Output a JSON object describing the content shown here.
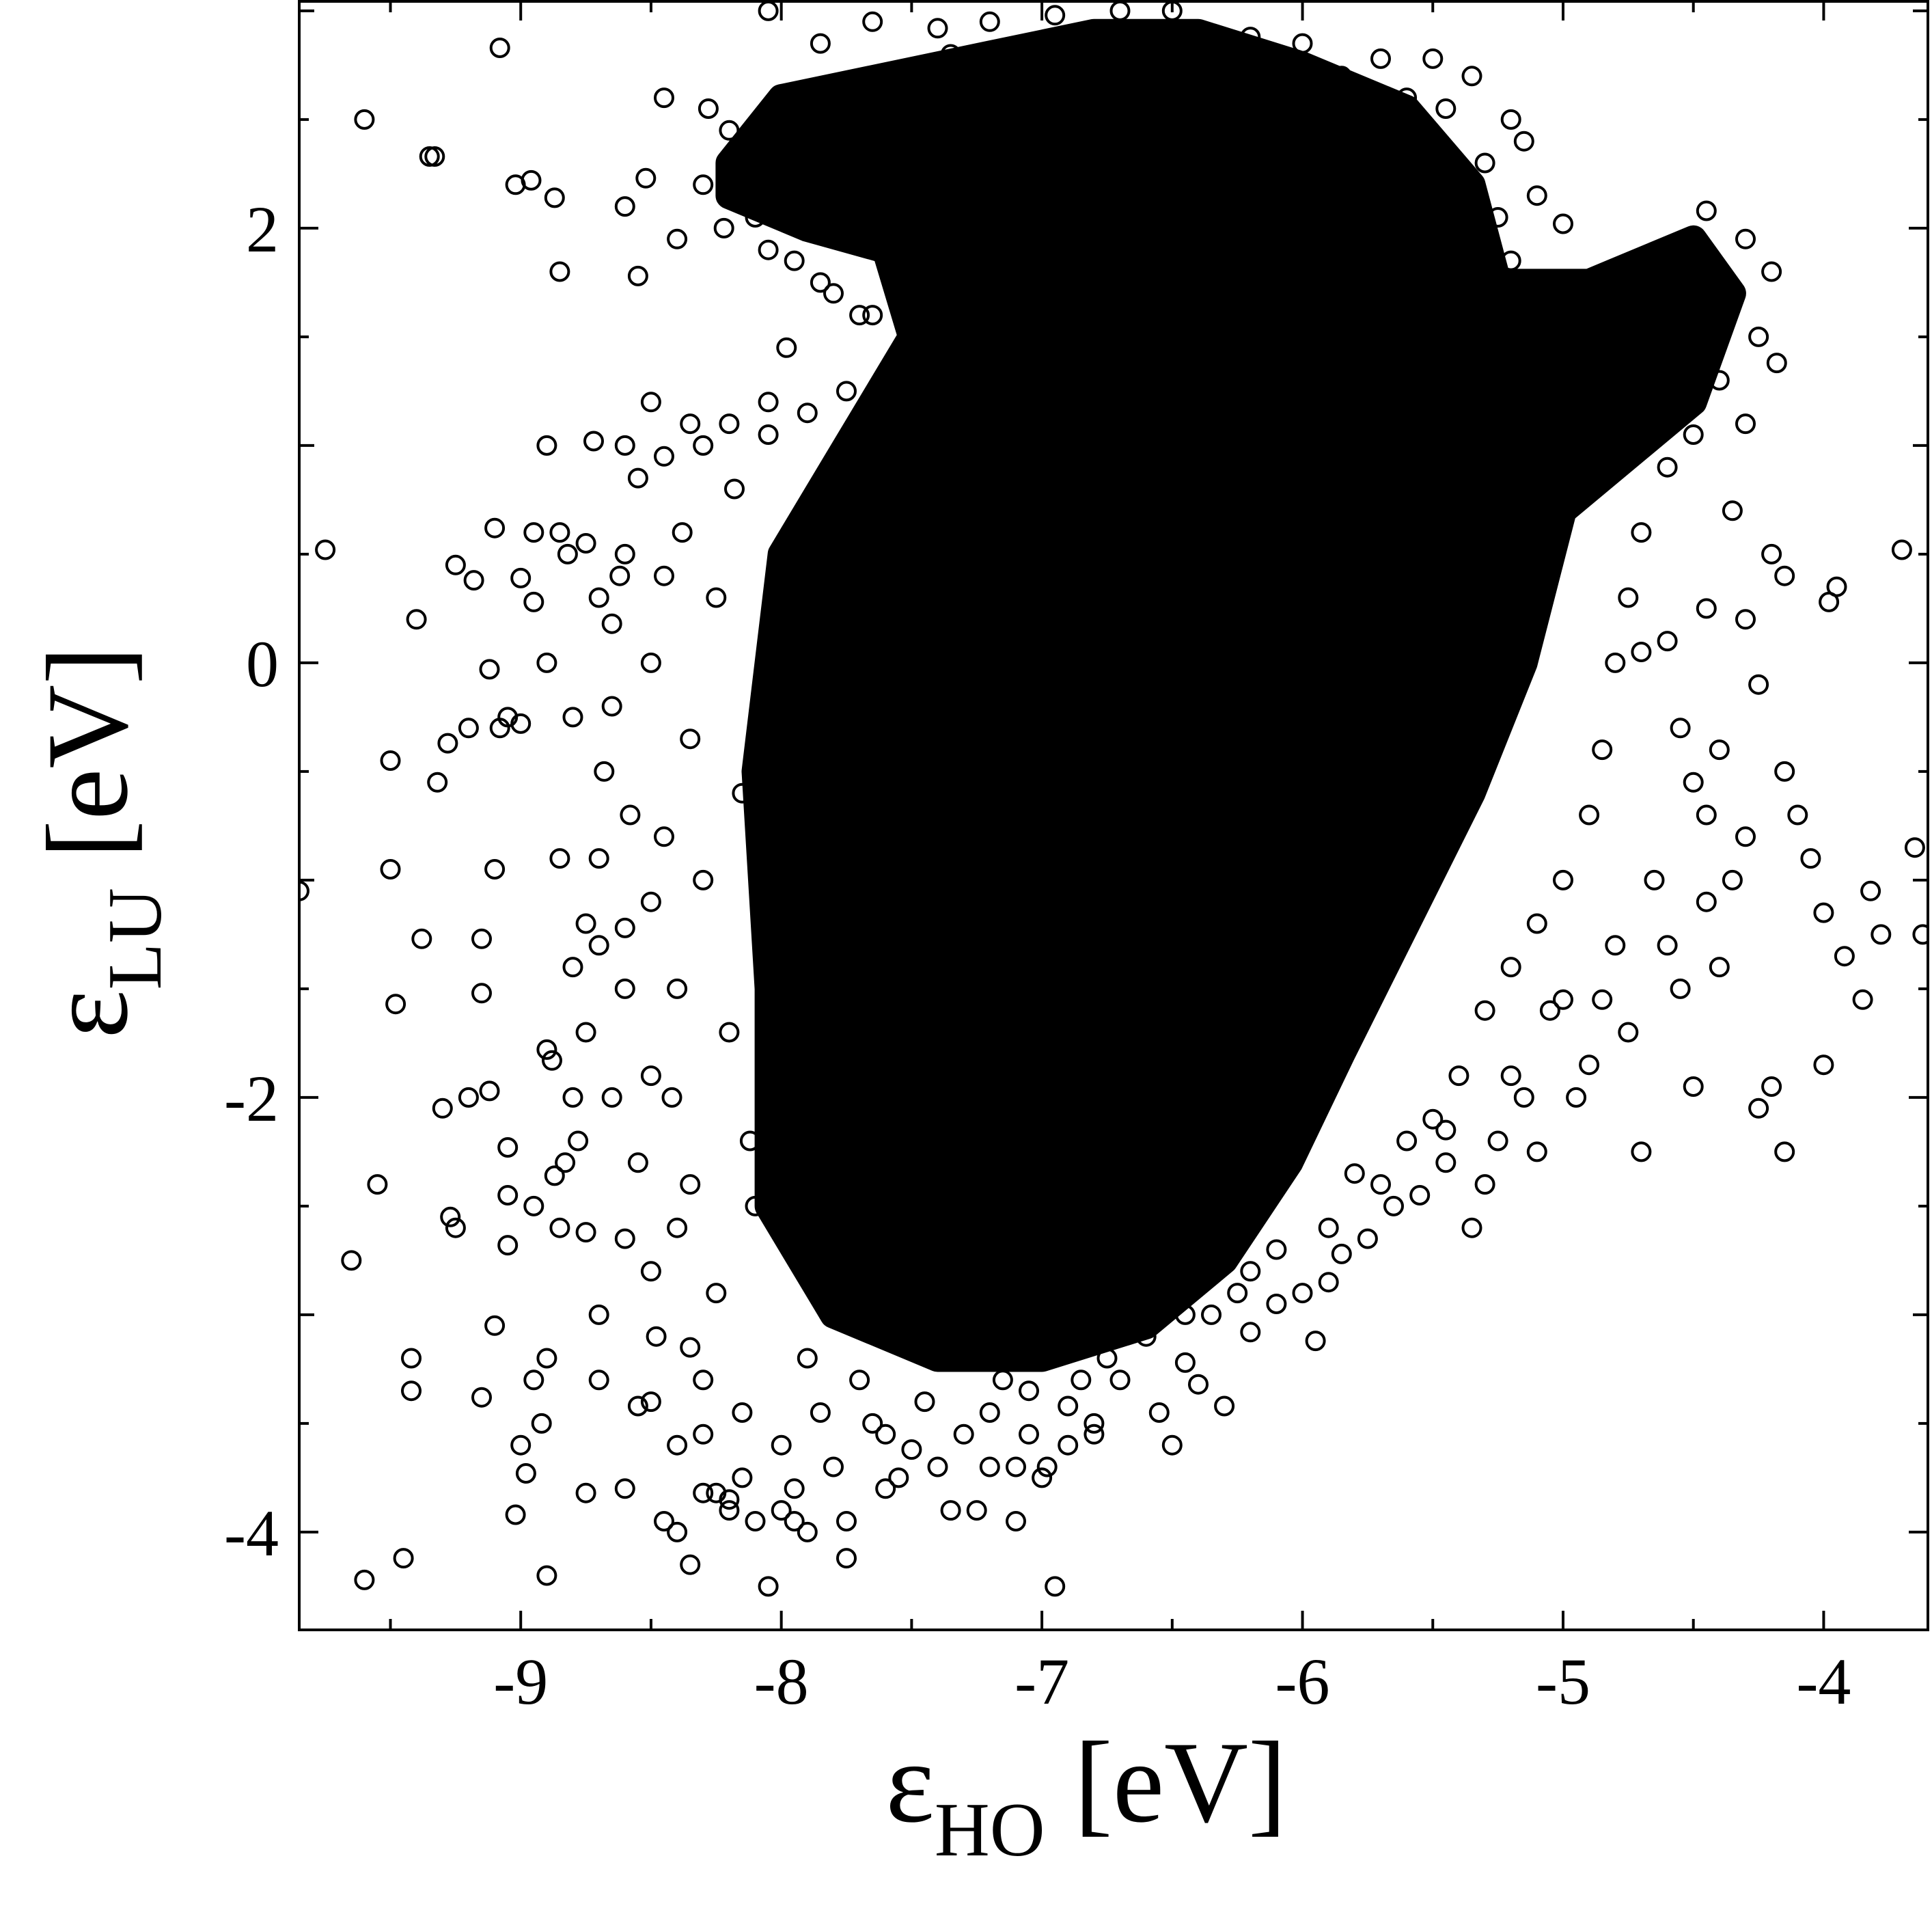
{
  "chart_data": {
    "type": "scatter",
    "title": "",
    "xlabel": {
      "symbol": "ε",
      "subscript": "HO",
      "unit": "[eV]"
    },
    "ylabel": {
      "symbol": "ε",
      "subscript": "LU",
      "unit": "[eV]"
    },
    "xlim": [
      -9.85,
      -3.6
    ],
    "ylim": [
      -4.45,
      3.05
    ],
    "xticks": [
      {
        "value": -9,
        "label": "-9"
      },
      {
        "value": -8,
        "label": "-8"
      },
      {
        "value": -7,
        "label": "-7"
      },
      {
        "value": -6,
        "label": "-6"
      },
      {
        "value": -5,
        "label": "-5"
      },
      {
        "value": -4,
        "label": "-4"
      }
    ],
    "yticks": [
      {
        "value": -4,
        "label": "-4"
      },
      {
        "value": -2,
        "label": "-2"
      },
      {
        "value": 0,
        "label": "0"
      },
      {
        "value": 2,
        "label": "2"
      }
    ],
    "grid": false,
    "legend": "none",
    "marker": "open-circle",
    "marker_color": "#000000",
    "dense_region_outline": [
      [
        -8.2,
        2.3
      ],
      [
        -8.0,
        2.6
      ],
      [
        -7.6,
        2.7
      ],
      [
        -7.2,
        2.8
      ],
      [
        -6.8,
        2.9
      ],
      [
        -6.4,
        2.9
      ],
      [
        -6.0,
        2.75
      ],
      [
        -5.6,
        2.55
      ],
      [
        -5.35,
        2.2
      ],
      [
        -5.25,
        1.75
      ],
      [
        -4.9,
        1.75
      ],
      [
        -4.5,
        1.95
      ],
      [
        -4.35,
        1.7
      ],
      [
        -4.5,
        1.2
      ],
      [
        -5.0,
        0.7
      ],
      [
        -5.15,
        0.0
      ],
      [
        -5.35,
        -0.6
      ],
      [
        -5.6,
        -1.2
      ],
      [
        -5.85,
        -1.8
      ],
      [
        -6.05,
        -2.3
      ],
      [
        -6.3,
        -2.75
      ],
      [
        -6.6,
        -3.05
      ],
      [
        -7.0,
        -3.2
      ],
      [
        -7.4,
        -3.2
      ],
      [
        -7.8,
        -3.0
      ],
      [
        -8.05,
        -2.5
      ],
      [
        -8.05,
        -1.5
      ],
      [
        -8.1,
        -0.5
      ],
      [
        -8.0,
        0.5
      ],
      [
        -7.7,
        1.1
      ],
      [
        -7.5,
        1.5
      ],
      [
        -7.6,
        1.9
      ],
      [
        -7.9,
        2.0
      ],
      [
        -8.2,
        2.15
      ]
    ],
    "points": [
      [
        -9.85,
        -1.05
      ],
      [
        -9.75,
        0.52
      ],
      [
        -9.65,
        -2.75
      ],
      [
        -9.6,
        2.5
      ],
      [
        -9.6,
        -4.22
      ],
      [
        -9.55,
        -2.4
      ],
      [
        -9.5,
        -0.45
      ],
      [
        -9.5,
        -0.95
      ],
      [
        -9.48,
        -1.57
      ],
      [
        -9.45,
        -4.12
      ],
      [
        -9.42,
        -3.2
      ],
      [
        -9.42,
        -3.35
      ],
      [
        -9.4,
        0.2
      ],
      [
        -9.38,
        -1.27
      ],
      [
        -9.35,
        2.33
      ],
      [
        -9.33,
        2.33
      ],
      [
        -9.32,
        -0.55
      ],
      [
        -9.3,
        -2.05
      ],
      [
        -9.28,
        -0.37
      ],
      [
        -9.27,
        -2.55
      ],
      [
        -9.25,
        -2.6
      ],
      [
        -9.2,
        -2.0
      ],
      [
        -9.18,
        0.38
      ],
      [
        -9.15,
        -1.27
      ],
      [
        -9.15,
        -1.52
      ],
      [
        -9.15,
        -3.38
      ],
      [
        -9.12,
        -0.03
      ],
      [
        -9.12,
        -1.97
      ],
      [
        -9.1,
        -3.05
      ],
      [
        -9.1,
        -0.95
      ],
      [
        -9.08,
        2.83
      ],
      [
        -9.08,
        -0.3
      ],
      [
        -9.05,
        -2.23
      ],
      [
        -9.05,
        -2.45
      ],
      [
        -9.05,
        -2.68
      ],
      [
        -9.02,
        -3.92
      ],
      [
        -9.02,
        2.2
      ],
      [
        -9.0,
        0.39
      ],
      [
        -8.98,
        -3.73
      ],
      [
        -8.96,
        2.22
      ],
      [
        -8.95,
        0.6
      ],
      [
        -8.95,
        -2.5
      ],
      [
        -8.92,
        -3.5
      ],
      [
        -8.9,
        0.0
      ],
      [
        -8.9,
        -1.78
      ],
      [
        -8.9,
        -4.2
      ],
      [
        -8.88,
        -1.83
      ],
      [
        -8.87,
        2.14
      ],
      [
        -8.87,
        -2.36
      ],
      [
        -8.85,
        0.6
      ],
      [
        -8.83,
        -2.3
      ],
      [
        -8.82,
        0.5
      ],
      [
        -8.8,
        -0.25
      ],
      [
        -8.78,
        -2.2
      ],
      [
        -8.75,
        -3.82
      ],
      [
        -8.75,
        -2.62
      ],
      [
        -8.72,
        1.02
      ],
      [
        -8.7,
        0.3
      ],
      [
        -8.7,
        -1.3
      ],
      [
        -8.7,
        -3.0
      ],
      [
        -8.68,
        -0.5
      ],
      [
        -8.65,
        0.18
      ],
      [
        -8.62,
        0.4
      ],
      [
        -8.6,
        2.1
      ],
      [
        -8.6,
        -1.22
      ],
      [
        -8.6,
        -2.65
      ],
      [
        -8.58,
        -0.7
      ],
      [
        -8.55,
        1.78
      ],
      [
        -8.55,
        -3.42
      ],
      [
        -8.52,
        2.23
      ],
      [
        -8.5,
        0.0
      ],
      [
        -8.5,
        -1.1
      ],
      [
        -8.5,
        -1.9
      ],
      [
        -8.48,
        -3.1
      ],
      [
        -8.45,
        2.6
      ],
      [
        -8.45,
        0.4
      ],
      [
        -8.42,
        -2.0
      ],
      [
        -8.4,
        -1.5
      ],
      [
        -8.4,
        -3.6
      ],
      [
        -8.38,
        0.6
      ],
      [
        -8.35,
        -0.35
      ],
      [
        -8.35,
        -2.4
      ],
      [
        -8.3,
        1.0
      ],
      [
        -8.3,
        -1.0
      ],
      [
        -8.3,
        -3.3
      ],
      [
        -8.28,
        2.55
      ],
      [
        -8.25,
        0.3
      ],
      [
        -8.25,
        -2.9
      ],
      [
        -8.22,
        2.0
      ],
      [
        -8.2,
        -1.7
      ],
      [
        -8.2,
        -3.9
      ],
      [
        -8.18,
        0.8
      ],
      [
        -8.15,
        -0.6
      ],
      [
        -8.12,
        -2.2
      ],
      [
        -8.1,
        2.3
      ],
      [
        -8.1,
        -3.95
      ],
      [
        -8.05,
        -4.25
      ],
      [
        -8.05,
        1.2
      ],
      [
        -8.0,
        -3.6
      ],
      [
        -7.98,
        1.45
      ],
      [
        -7.95,
        -3.8
      ],
      [
        -7.9,
        -3.2
      ],
      [
        -7.85,
        1.75
      ],
      [
        -7.8,
        -3.7
      ],
      [
        -7.75,
        -4.12
      ],
      [
        -7.7,
        1.6
      ],
      [
        -7.65,
        -3.5
      ],
      [
        -7.6,
        -3.8
      ],
      [
        -7.55,
        1.3
      ],
      [
        -7.5,
        -3.62
      ],
      [
        -7.45,
        -3.4
      ],
      [
        -7.4,
        -3.7
      ],
      [
        -7.35,
        1.55
      ],
      [
        -7.3,
        -3.55
      ],
      [
        -7.25,
        -3.9
      ],
      [
        -7.2,
        -3.45
      ],
      [
        -7.15,
        -3.3
      ],
      [
        -7.1,
        -3.7
      ],
      [
        -7.05,
        -3.55
      ],
      [
        -7.0,
        -3.75
      ],
      [
        -6.95,
        -4.25
      ],
      [
        -6.9,
        -3.42
      ],
      [
        -6.85,
        -3.3
      ],
      [
        -6.8,
        -3.5
      ],
      [
        -6.75,
        -3.2
      ],
      [
        -6.7,
        -3.3
      ],
      [
        -6.6,
        -3.1
      ],
      [
        -6.5,
        -3.6
      ],
      [
        -6.45,
        -3.22
      ],
      [
        -6.4,
        -3.32
      ],
      [
        -6.35,
        -3.0
      ],
      [
        -6.3,
        -3.42
      ],
      [
        -6.25,
        -2.9
      ],
      [
        -6.2,
        -2.8
      ],
      [
        -6.1,
        -2.7
      ],
      [
        -6.0,
        -2.9
      ],
      [
        -5.95,
        -3.12
      ],
      [
        -5.9,
        -2.6
      ],
      [
        -5.85,
        -2.72
      ],
      [
        -5.8,
        -2.35
      ],
      [
        -5.7,
        -2.4
      ],
      [
        -5.6,
        -2.2
      ],
      [
        -5.5,
        -2.1
      ],
      [
        -5.45,
        -2.3
      ],
      [
        -5.4,
        -1.9
      ],
      [
        -5.35,
        -2.6
      ],
      [
        -5.3,
        -2.4
      ],
      [
        -5.25,
        -2.2
      ],
      [
        -5.2,
        -1.9
      ],
      [
        -5.15,
        -2.0
      ],
      [
        -5.1,
        -2.25
      ],
      [
        -5.05,
        -1.6
      ],
      [
        -5.0,
        -1.55
      ],
      [
        -4.95,
        -2.0
      ],
      [
        -4.9,
        -1.85
      ],
      [
        -4.85,
        -1.55
      ],
      [
        -4.8,
        -1.3
      ],
      [
        -4.75,
        -1.7
      ],
      [
        -4.7,
        -2.25
      ],
      [
        -4.65,
        -1.0
      ],
      [
        -4.6,
        -1.3
      ],
      [
        -4.55,
        -1.5
      ],
      [
        -4.5,
        -1.95
      ],
      [
        -4.45,
        -0.7
      ],
      [
        -4.45,
        -1.1
      ],
      [
        -4.4,
        -1.4
      ],
      [
        -4.35,
        -1.0
      ],
      [
        -4.3,
        -0.8
      ],
      [
        -4.25,
        -2.05
      ],
      [
        -4.2,
        -1.95
      ],
      [
        -4.15,
        -0.5
      ],
      [
        -4.15,
        -2.25
      ],
      [
        -4.1,
        -0.7
      ],
      [
        -4.05,
        -0.9
      ],
      [
        -4.0,
        -1.15
      ],
      [
        -4.0,
        -1.85
      ],
      [
        -3.98,
        0.28
      ],
      [
        -3.95,
        0.35
      ],
      [
        -3.92,
        -1.35
      ],
      [
        -3.85,
        -1.55
      ],
      [
        -3.82,
        -1.05
      ],
      [
        -3.78,
        -1.25
      ],
      [
        -3.7,
        0.52
      ],
      [
        -3.65,
        -0.85
      ],
      [
        -3.62,
        -1.25
      ],
      [
        -4.7,
        0.05
      ],
      [
        -4.6,
        0.1
      ],
      [
        -4.55,
        -0.3
      ],
      [
        -4.5,
        -0.55
      ],
      [
        -4.45,
        0.25
      ],
      [
        -4.4,
        -0.4
      ],
      [
        -4.35,
        0.7
      ],
      [
        -4.3,
        0.2
      ],
      [
        -4.25,
        -0.1
      ],
      [
        -4.2,
        0.5
      ],
      [
        -4.15,
        0.4
      ],
      [
        -4.3,
        1.1
      ],
      [
        -4.25,
        1.5
      ],
      [
        -4.2,
        1.8
      ],
      [
        -4.18,
        1.38
      ],
      [
        -4.3,
        1.95
      ],
      [
        -4.45,
        2.08
      ],
      [
        -5.0,
        2.02
      ],
      [
        -5.1,
        2.15
      ],
      [
        -5.15,
        2.4
      ],
      [
        -5.2,
        2.5
      ],
      [
        -5.35,
        2.7
      ],
      [
        -5.5,
        2.78
      ],
      [
        -5.7,
        2.78
      ],
      [
        -6.0,
        2.85
      ],
      [
        -6.2,
        2.88
      ],
      [
        -6.5,
        3.0
      ],
      [
        -6.7,
        3.0
      ],
      [
        -6.95,
        2.98
      ],
      [
        -7.2,
        2.95
      ],
      [
        -7.4,
        2.92
      ],
      [
        -7.65,
        2.95
      ],
      [
        -7.85,
        2.85
      ],
      [
        -8.05,
        3.0
      ],
      [
        -8.2,
        2.45
      ],
      [
        -8.3,
        2.2
      ],
      [
        -8.4,
        1.95
      ],
      [
        -8.5,
        1.2
      ],
      [
        -8.6,
        1.0
      ],
      [
        -8.75,
        0.55
      ],
      [
        -8.85,
        1.8
      ],
      [
        -8.9,
        1.0
      ],
      [
        -8.95,
        0.28
      ],
      [
        -9.0,
        -0.28
      ],
      [
        -9.05,
        -0.25
      ],
      [
        -9.1,
        0.62
      ],
      [
        -9.2,
        -0.3
      ],
      [
        -9.25,
        0.45
      ],
      [
        -8.85,
        -0.9
      ],
      [
        -8.8,
        -1.4
      ],
      [
        -8.75,
        -1.7
      ],
      [
        -8.65,
        -2.0
      ],
      [
        -8.6,
        -1.5
      ],
      [
        -8.55,
        -2.3
      ],
      [
        -8.5,
        -2.8
      ],
      [
        -8.45,
        -0.8
      ],
      [
        -8.4,
        -2.6
      ],
      [
        -8.35,
        -3.15
      ],
      [
        -8.3,
        -3.55
      ],
      [
        -8.25,
        -3.82
      ],
      [
        -8.15,
        -3.45
      ],
      [
        -8.1,
        -2.5
      ],
      [
        -7.95,
        -3.95
      ],
      [
        -7.9,
        -4.0
      ],
      [
        -7.85,
        -3.45
      ],
      [
        -7.75,
        -3.95
      ],
      [
        -7.7,
        -3.3
      ],
      [
        -7.6,
        -3.55
      ],
      [
        -7.55,
        -3.75
      ],
      [
        -7.35,
        -3.9
      ],
      [
        -7.2,
        -3.7
      ],
      [
        -7.1,
        -3.95
      ],
      [
        -7.05,
        -3.35
      ],
      [
        -6.98,
        -3.7
      ],
      [
        -6.9,
        -3.6
      ],
      [
        -6.8,
        -3.55
      ],
      [
        -6.55,
        -3.45
      ],
      [
        -6.45,
        -3.0
      ],
      [
        -6.2,
        -3.08
      ],
      [
        -6.1,
        -2.95
      ],
      [
        -5.9,
        -2.85
      ],
      [
        -5.75,
        -2.65
      ],
      [
        -5.65,
        -2.5
      ],
      [
        -5.55,
        -2.45
      ],
      [
        -5.45,
        -2.15
      ],
      [
        -5.3,
        -1.6
      ],
      [
        -5.2,
        -1.4
      ],
      [
        -5.1,
        -1.2
      ],
      [
        -5.0,
        -1.0
      ],
      [
        -4.9,
        -0.7
      ],
      [
        -4.85,
        -0.4
      ],
      [
        -4.8,
        0.0
      ],
      [
        -4.75,
        0.3
      ],
      [
        -4.7,
        0.6
      ],
      [
        -4.6,
        0.9
      ],
      [
        -4.5,
        1.05
      ],
      [
        -4.4,
        1.3
      ],
      [
        -4.7,
        1.65
      ],
      [
        -4.8,
        1.5
      ],
      [
        -5.05,
        1.6
      ],
      [
        -5.2,
        1.85
      ],
      [
        -5.25,
        2.05
      ],
      [
        -5.3,
        2.3
      ],
      [
        -5.45,
        2.55
      ],
      [
        -5.6,
        2.6
      ],
      [
        -5.85,
        2.7
      ],
      [
        -6.1,
        2.75
      ],
      [
        -6.35,
        2.8
      ],
      [
        -6.6,
        2.85
      ],
      [
        -6.85,
        2.82
      ],
      [
        -7.1,
        2.78
      ],
      [
        -7.35,
        2.8
      ],
      [
        -7.55,
        2.7
      ],
      [
        -7.7,
        2.55
      ],
      [
        -7.9,
        2.6
      ],
      [
        -8.0,
        2.4
      ],
      [
        -8.1,
        2.05
      ],
      [
        -8.05,
        1.9
      ],
      [
        -7.95,
        1.85
      ],
      [
        -7.8,
        1.7
      ],
      [
        -7.65,
        1.6
      ],
      [
        -7.45,
        1.7
      ],
      [
        -7.55,
        1.85
      ],
      [
        -7.3,
        1.7
      ],
      [
        -7.75,
        1.25
      ],
      [
        -7.9,
        1.15
      ],
      [
        -8.05,
        1.05
      ],
      [
        -8.2,
        1.1
      ],
      [
        -8.35,
        1.1
      ],
      [
        -8.45,
        0.95
      ],
      [
        -8.55,
        0.85
      ],
      [
        -8.6,
        0.5
      ],
      [
        -8.65,
        -0.2
      ],
      [
        -8.7,
        -0.9
      ],
      [
        -8.75,
        -1.2
      ],
      [
        -8.8,
        -2.0
      ],
      [
        -8.85,
        -2.6
      ],
      [
        -8.9,
        -3.2
      ],
      [
        -8.95,
        -3.3
      ],
      [
        -9.0,
        -3.6
      ],
      [
        -8.7,
        -3.3
      ],
      [
        -8.6,
        -3.8
      ],
      [
        -8.5,
        -3.4
      ],
      [
        -8.45,
        -3.95
      ],
      [
        -8.4,
        -4.0
      ],
      [
        -8.35,
        -4.15
      ],
      [
        -8.3,
        -3.82
      ],
      [
        -8.2,
        -3.85
      ],
      [
        -8.15,
        -3.75
      ],
      [
        -8.0,
        -3.9
      ]
    ]
  }
}
